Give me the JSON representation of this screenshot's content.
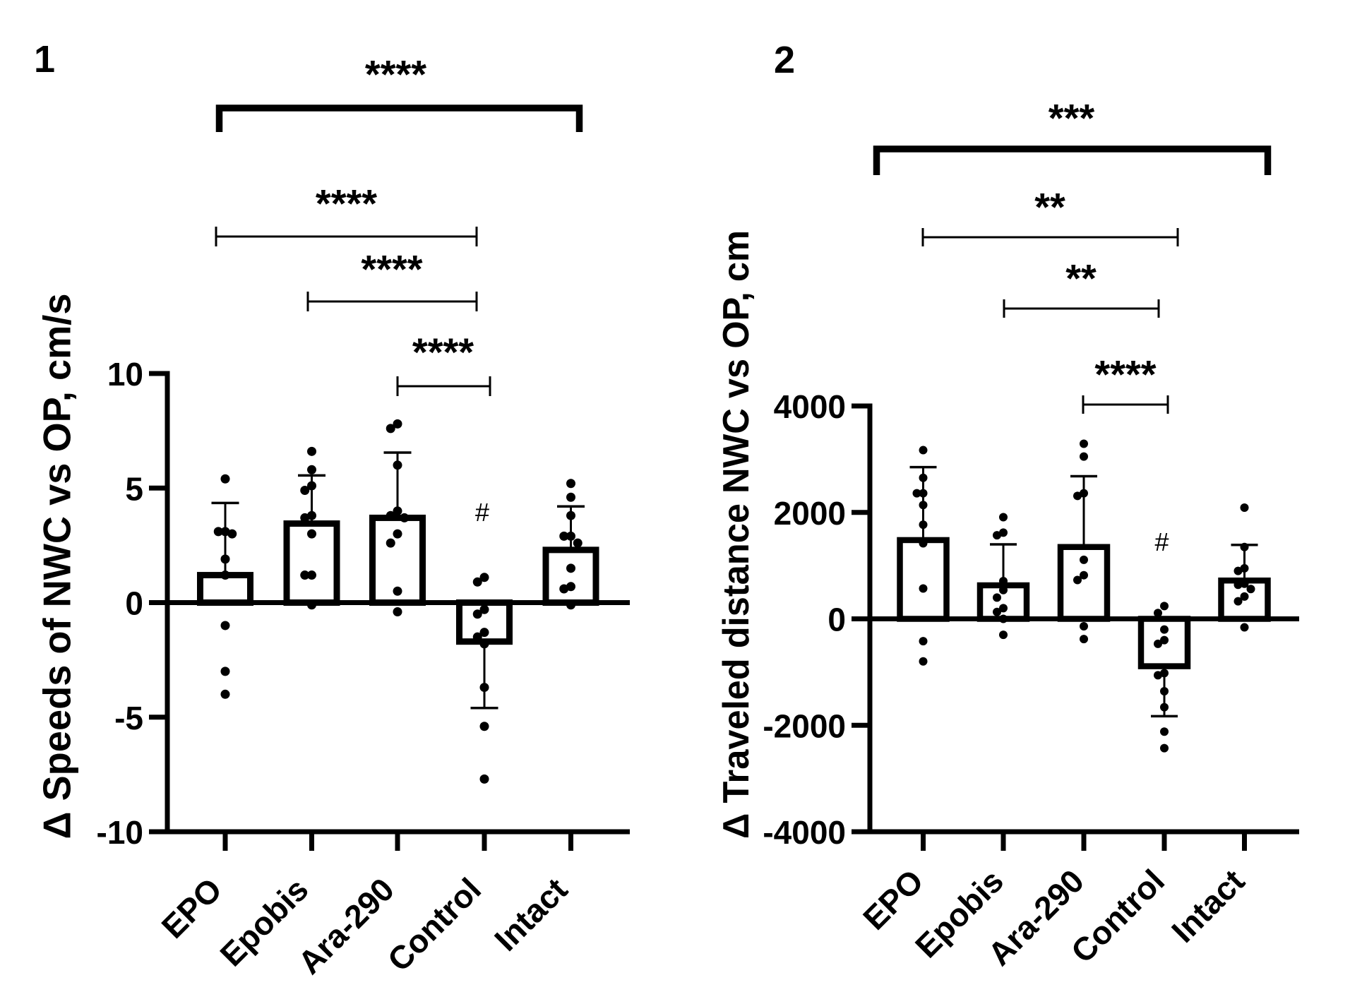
{
  "colors": {
    "ink": "#000000",
    "bar_fill": "#ffffff",
    "background": "#ffffff"
  },
  "chart_data": [
    {
      "panel_label": "1",
      "type": "bar",
      "title": "",
      "xlabel": "",
      "ylabel": "Δ Speeds of NWC vs OP, cm/s",
      "ylim": [
        -10,
        10
      ],
      "yticks": [
        10,
        5,
        0,
        -5,
        -10
      ],
      "ytick_labels": [
        "10",
        "5",
        "0",
        "-5",
        "-10"
      ],
      "grid": false,
      "categories": [
        "EPO",
        "Epobis",
        "Ara-290",
        "Control",
        "Intact"
      ],
      "values": [
        1.2,
        3.45,
        3.7,
        -1.7,
        2.3
      ],
      "error_sd": [
        3.15,
        2.1,
        2.85,
        2.9,
        1.9
      ],
      "points": [
        [
          5.4,
          3.1,
          3.1,
          3.0,
          1.9,
          1.2,
          -1.0,
          -3.0,
          -4.0
        ],
        [
          6.6,
          5.8,
          5.1,
          4.9,
          3.8,
          3.7,
          3.0,
          1.2,
          1.2,
          -0.1
        ],
        [
          7.8,
          7.6,
          6.0,
          4.0,
          3.8,
          3.7,
          3.0,
          2.6,
          0.5,
          -0.4
        ],
        [
          1.1,
          0.9,
          -0.3,
          -0.5,
          -1.3,
          -1.5,
          -1.8,
          -3.7,
          -5.4,
          -7.7
        ],
        [
          5.2,
          4.6,
          3.8,
          2.9,
          2.9,
          2.6,
          1.5,
          0.7,
          0.6,
          -0.1
        ]
      ],
      "significance": [
        {
          "from": "EPO",
          "to": "Intact",
          "label": "****"
        },
        {
          "from": "EPO",
          "to": "Control",
          "label": "****"
        },
        {
          "from": "Epobis",
          "to": "Control",
          "label": "****"
        },
        {
          "from": "Ara-290",
          "to": "Control",
          "label": "****"
        }
      ],
      "annotations": [
        {
          "category": "Control",
          "label": "#"
        }
      ]
    },
    {
      "panel_label": "2",
      "type": "bar",
      "title": "",
      "xlabel": "",
      "ylabel": "Δ Traveled distance NWC vs OP, cm",
      "ylim": [
        -4000,
        4000
      ],
      "yticks": [
        4000,
        2000,
        0,
        -2000,
        -4000
      ],
      "ytick_labels": [
        "4000",
        "2000",
        "0",
        "-2000",
        "-4000"
      ],
      "grid": false,
      "categories": [
        "EPO",
        "Epobis",
        "Ara-290",
        "Control",
        "Intact"
      ],
      "values": [
        1480,
        630,
        1350,
        -890,
        720
      ],
      "error_sd": [
        1370,
        770,
        1330,
        940,
        670
      ],
      "points": [
        [
          3170,
          2650,
          2360,
          2360,
          2140,
          1770,
          1420,
          570,
          -420,
          -800
        ],
        [
          1910,
          1620,
          1570,
          710,
          540,
          400,
          200,
          130,
          0,
          -300
        ],
        [
          3290,
          3050,
          2360,
          2310,
          1110,
          820,
          730,
          -140,
          -380
        ],
        [
          240,
          110,
          -200,
          -400,
          -470,
          -1020,
          -1060,
          -1360,
          -1660,
          -2120,
          -2430
        ],
        [
          2090,
          1350,
          950,
          900,
          660,
          640,
          560,
          420,
          330,
          -160
        ]
      ],
      "significance": [
        {
          "from": "EPO",
          "to": "Intact",
          "label": "***"
        },
        {
          "from": "EPO",
          "to": "Control",
          "label": "**"
        },
        {
          "from": "Epobis",
          "to": "Control",
          "label": "**"
        },
        {
          "from": "Ara-290",
          "to": "Control",
          "label": "****"
        }
      ],
      "annotations": [
        {
          "category": "Control",
          "label": "#"
        }
      ]
    }
  ]
}
